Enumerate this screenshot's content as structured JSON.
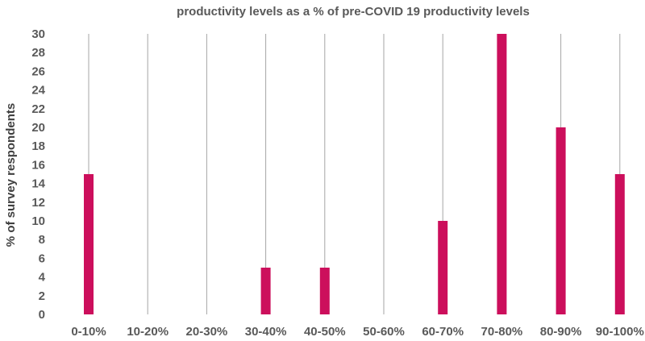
{
  "chart_data": {
    "type": "bar",
    "title": "productivity levels as a % of pre-COVID 19 productivity levels",
    "xlabel": "",
    "ylabel": "% of survey respondents",
    "categories": [
      "0-10%",
      "10-20%",
      "20-30%",
      "30-40%",
      "40-50%",
      "50-60%",
      "60-70%",
      "70-80%",
      "80-90%",
      "90-100%"
    ],
    "values": [
      15,
      0,
      0,
      5,
      5,
      0,
      10,
      30,
      20,
      15
    ],
    "ylim": [
      0,
      30
    ],
    "yticks": [
      "0",
      "2",
      "4",
      "6",
      "8",
      "10",
      "12",
      "14",
      "16",
      "18",
      "20",
      "22",
      "24",
      "26",
      "28",
      "30"
    ],
    "grid": "vertical",
    "legend": "none",
    "bar_color": "#cc0f5c",
    "gridline_color": "#a6a6a6"
  }
}
